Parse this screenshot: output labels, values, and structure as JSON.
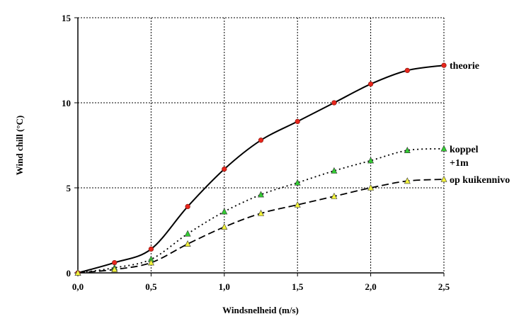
{
  "chart_data": {
    "type": "line",
    "xlabel": "Windsnelheid (m/s)",
    "ylabel": "Wind chill (°C)",
    "xlim": [
      0,
      2.5
    ],
    "ylim": [
      0,
      15
    ],
    "x_ticks": [
      "0,0",
      "0,5",
      "1,0",
      "1,5",
      "2,0",
      "2,5"
    ],
    "y_ticks": [
      "0",
      "5",
      "10",
      "15"
    ],
    "grid": true,
    "x": [
      0,
      0.25,
      0.5,
      0.75,
      1.0,
      1.25,
      1.5,
      1.75,
      2.0,
      2.25,
      2.5
    ],
    "series": [
      {
        "name": "theorie",
        "marker": "circle",
        "line_style": "solid",
        "marker_color": "#e8261c",
        "values": [
          0,
          0.6,
          1.4,
          3.9,
          6.1,
          7.8,
          8.9,
          10.0,
          11.1,
          11.9,
          12.2
        ]
      },
      {
        "name": "koppel +1m",
        "label_lines": [
          "koppel",
          "+1m"
        ],
        "marker": "triangle",
        "line_style": "dotted",
        "marker_color": "#33cc33",
        "values": [
          0,
          0.3,
          0.8,
          2.3,
          3.6,
          4.6,
          5.3,
          6.0,
          6.6,
          7.2,
          7.3
        ]
      },
      {
        "name": "op kuikennivo",
        "marker": "triangle",
        "line_style": "dashed",
        "marker_color": "#f2f23a",
        "values": [
          0,
          0.2,
          0.6,
          1.7,
          2.7,
          3.5,
          4.0,
          4.5,
          5.0,
          5.4,
          5.5
        ]
      }
    ]
  }
}
